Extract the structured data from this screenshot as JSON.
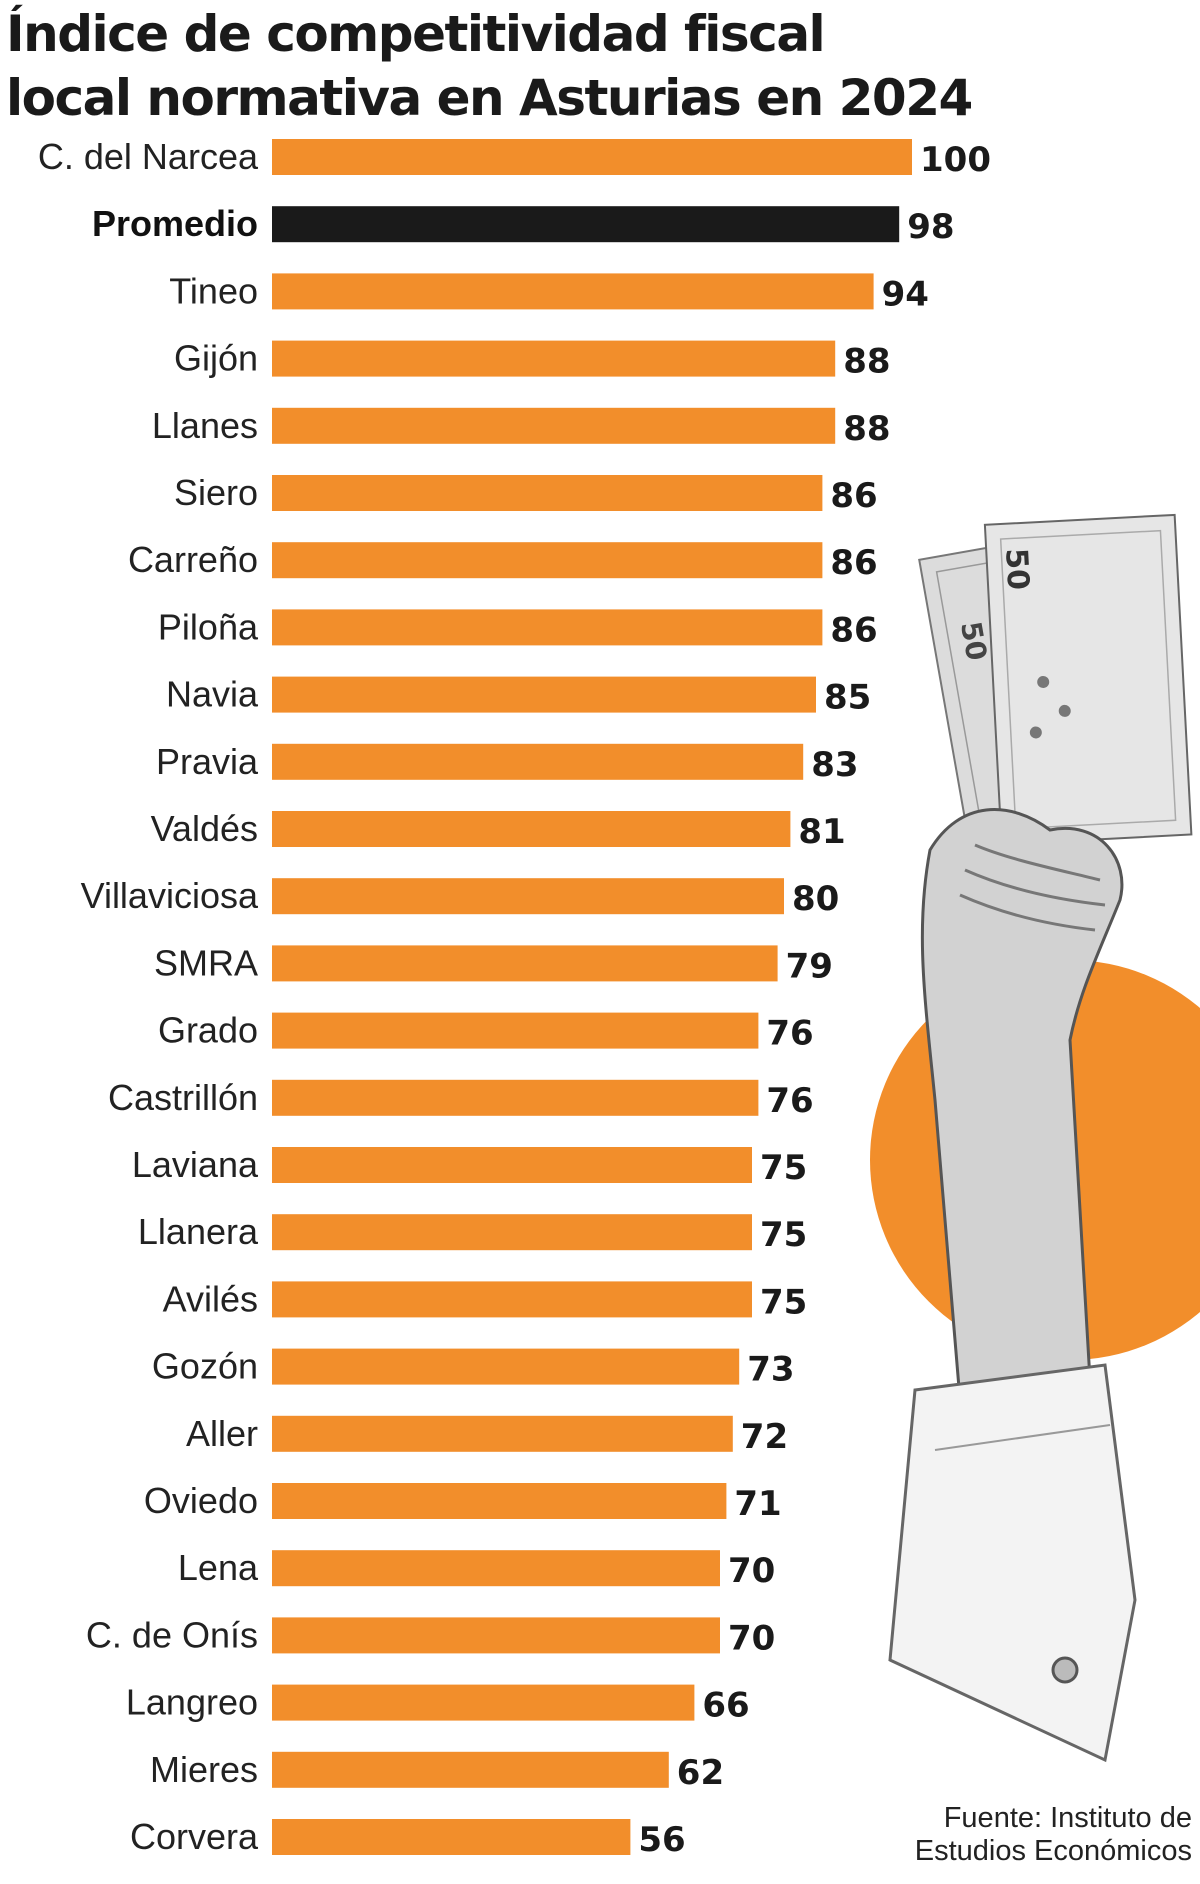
{
  "title_lines": [
    "Índice de competitividad fiscal",
    "local normativa en Asturias en 2024"
  ],
  "source_lines": [
    "Fuente: Instituto de",
    "Estudios Económicos"
  ],
  "colors": {
    "bar": "#f28e2b",
    "highlight_bar": "#1a1a1a",
    "circle": "#f28e2b"
  },
  "chart_data": {
    "type": "bar",
    "orientation": "horizontal",
    "title": "Índice de competitividad fiscal local normativa en Asturias en 2024",
    "categories": [
      "C. del Narcea",
      "Promedio",
      "Tineo",
      "Gijón",
      "Llanes",
      "Siero",
      "Carreño",
      "Piloña",
      "Navia",
      "Pravia",
      "Valdés",
      "Villaviciosa",
      "SMRA",
      "Grado",
      "Castrillón",
      "Laviana",
      "Llanera",
      "Avilés",
      "Gozón",
      "Aller",
      "Oviedo",
      "Lena",
      "C. de Onís",
      "Langreo",
      "Mieres",
      "Corvera"
    ],
    "values": [
      100,
      98,
      94,
      88,
      88,
      86,
      86,
      86,
      85,
      83,
      81,
      80,
      79,
      76,
      76,
      75,
      75,
      75,
      73,
      72,
      71,
      70,
      70,
      66,
      62,
      56
    ],
    "highlight": "Promedio",
    "xlim": [
      0,
      100
    ],
    "grid": false,
    "legend": "none"
  }
}
